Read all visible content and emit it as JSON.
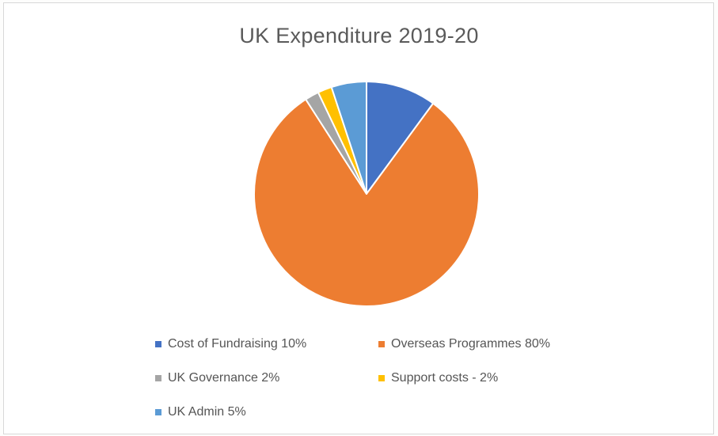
{
  "chart_data": {
    "type": "pie",
    "title": "UK Expenditure 2019-20",
    "slices": [
      {
        "label": "Cost of Fundraising 10%",
        "value": 10,
        "color": "#4472c4"
      },
      {
        "label": "Overseas Programmes 80%",
        "value": 80,
        "color": "#ed7d31"
      },
      {
        "label": "UK Governance 2%",
        "value": 2,
        "color": "#a5a5a5"
      },
      {
        "label": "Support costs - 2%",
        "value": 2,
        "color": "#ffc000"
      },
      {
        "label": "UK Admin  5%",
        "value": 5,
        "color": "#5b9bd5"
      }
    ],
    "legend_position": "bottom"
  }
}
